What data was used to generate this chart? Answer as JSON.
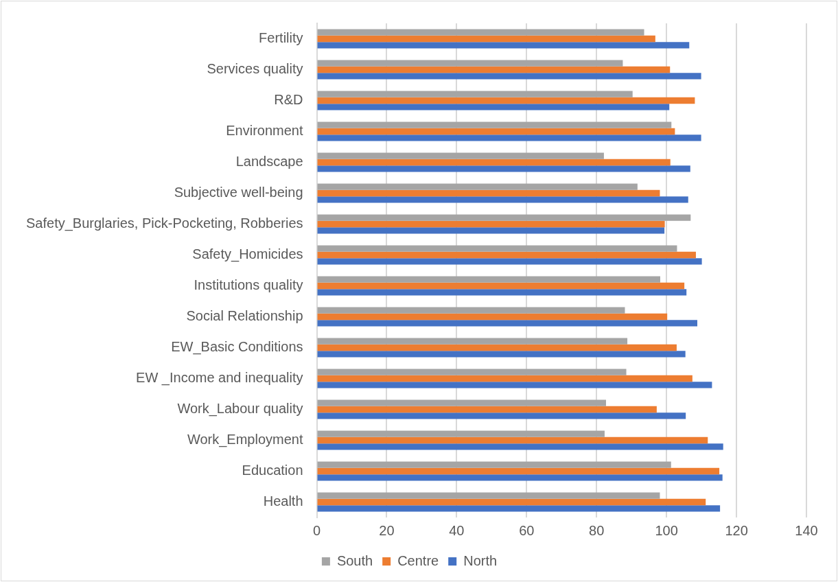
{
  "chart_data": {
    "type": "bar",
    "orientation": "horizontal",
    "categories": [
      "Fertility",
      "Services quality",
      "R&D",
      "Environment",
      "Landscape",
      "Subjective well-being",
      "Safety_Burglaries, Pick-Pocketing, Robberies",
      "Safety_Homicides",
      "Institutions quality",
      "Social Relationship",
      "EW_Basic Conditions",
      "EW _Income and inequality",
      "Work_Labour quality",
      "Work_Employment",
      "Education",
      "Health"
    ],
    "series": [
      {
        "name": "South",
        "color": "#a5a5a5",
        "values": [
          93.6,
          87.5,
          90.3,
          101.4,
          82.1,
          91.7,
          106.9,
          103,
          98.2,
          88.1,
          88.8,
          88.5,
          82.7,
          82.3,
          101.3,
          98.1
        ]
      },
      {
        "name": "Centre",
        "color": "#ed7d31",
        "values": [
          96.8,
          101,
          108.1,
          102.4,
          101.1,
          98.1,
          99.5,
          108.4,
          105.1,
          100.2,
          102.9,
          107.4,
          97.2,
          111.8,
          115.1,
          111.2
        ]
      },
      {
        "name": "North",
        "color": "#4472c4",
        "values": [
          106.5,
          109.9,
          100.8,
          109.9,
          106.8,
          106.2,
          99.4,
          110.1,
          105.7,
          108.8,
          105.4,
          113,
          105.5,
          116.2,
          116,
          115.3
        ]
      }
    ],
    "xlim": [
      0,
      140
    ],
    "xticks": [
      0,
      20,
      40,
      60,
      80,
      100,
      120,
      140
    ],
    "grid": "x",
    "legend": "bottom"
  }
}
